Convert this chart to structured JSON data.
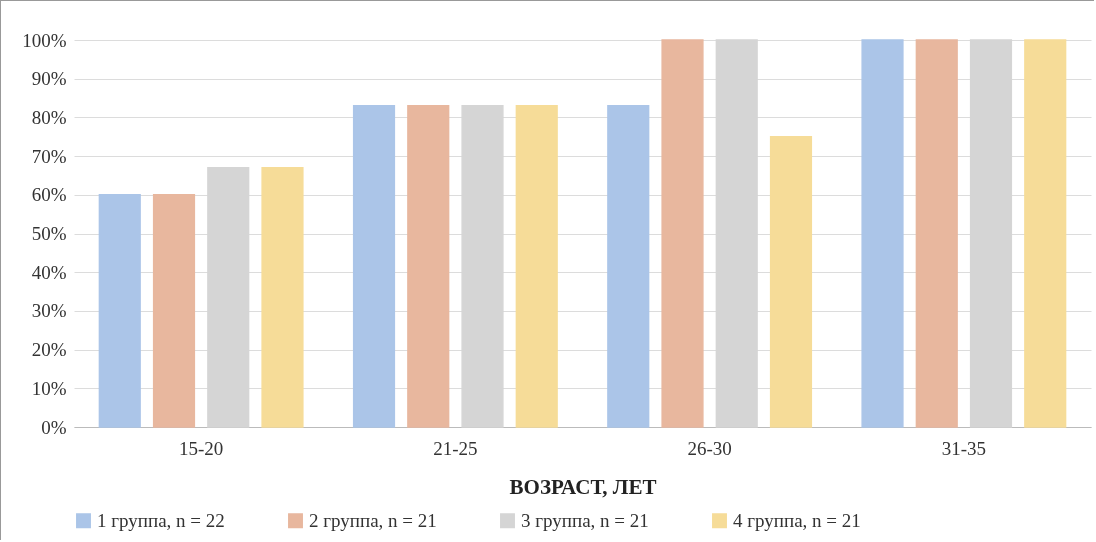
{
  "chart_data": {
    "type": "bar",
    "xlabel": "ВОЗРАСТ, ЛЕТ",
    "categories": [
      "15-20",
      "21-25",
      "26-30",
      "31-35"
    ],
    "series": [
      {
        "name": "1 группа, n = 22",
        "color": "#abc5e8",
        "values": [
          60,
          83,
          83,
          100
        ]
      },
      {
        "name": "2 группа, n = 21",
        "color": "#e8b79e",
        "values": [
          60,
          83,
          100,
          100
        ]
      },
      {
        "name": "3 группа, n = 21",
        "color": "#d5d5d5",
        "values": [
          67,
          83,
          100,
          100
        ]
      },
      {
        "name": "4 группа, n = 21",
        "color": "#f6dc98",
        "values": [
          67,
          83,
          75,
          100
        ]
      }
    ],
    "ylim": [
      0,
      100
    ],
    "yticks": [
      {
        "value": 0,
        "label": "0%"
      },
      {
        "value": 10,
        "label": "10%"
      },
      {
        "value": 20,
        "label": "20%"
      },
      {
        "value": 30,
        "label": "30%"
      },
      {
        "value": 40,
        "label": "40%"
      },
      {
        "value": 50,
        "label": "50%"
      },
      {
        "value": 60,
        "label": "60%"
      },
      {
        "value": 70,
        "label": "70%"
      },
      {
        "value": 80,
        "label": "80%"
      },
      {
        "value": 90,
        "label": "90%"
      },
      {
        "value": 100,
        "label": "100%"
      }
    ],
    "grid": "y",
    "legend": "bottom"
  }
}
